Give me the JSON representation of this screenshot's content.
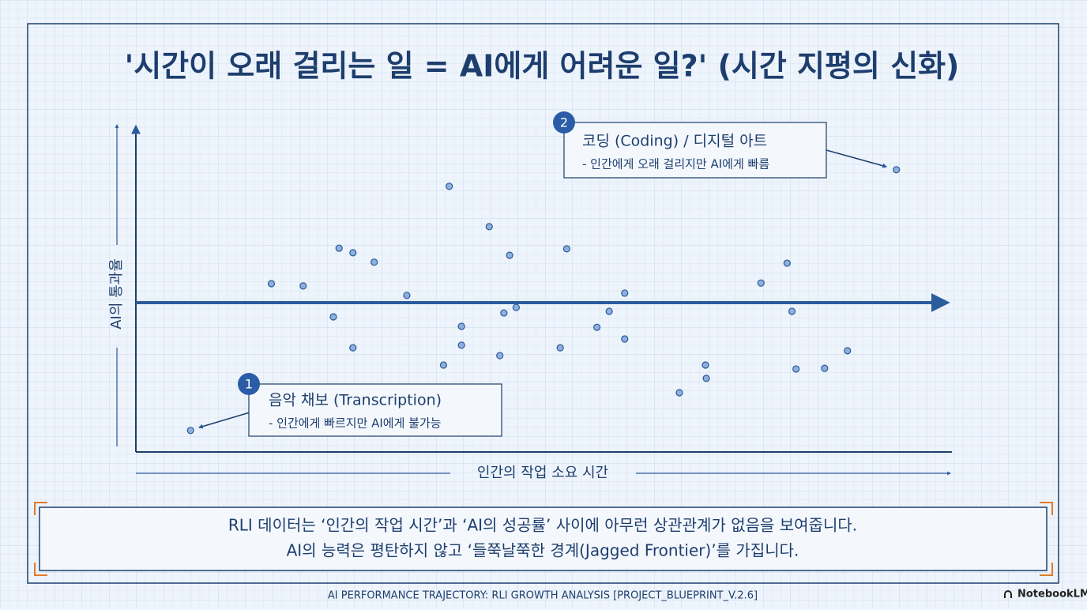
{
  "chart_data": {
    "type": "scatter",
    "title": "'시간이 오래 걸리는 일 = AI에게 어려운 일?' (시간 지평의 신화)",
    "x_label": "인간의 작업 소요 시간",
    "y_label": "AI의 통과율",
    "xlim": [
      0,
      100
    ],
    "ylim": [
      0,
      100
    ],
    "color": "#8fb0dc",
    "series": [
      {
        "x": [
          6.7,
          16.6,
          20.5,
          24.9,
          26.6,
          29.2,
          24.2,
          26.6,
          33.2,
          38.4,
          39.9,
          39.9,
          37.7,
          43.3,
          45.8,
          45.1,
          46.6,
          44.6,
          52.8,
          52.0,
          56.5,
          58.0,
          59.9,
          59.9,
          66.6,
          69.8,
          69.9,
          76.6,
          79.8,
          80.4,
          80.9,
          84.4,
          87.2,
          93.2
        ],
        "values": [
          6.6,
          51.7,
          51.0,
          62.6,
          61.2,
          58.3,
          41.5,
          32.0,
          48.1,
          81.6,
          38.6,
          32.8,
          26.7,
          69.2,
          60.4,
          42.7,
          44.4,
          29.6,
          62.4,
          32.0,
          38.3,
          43.2,
          48.8,
          34.7,
          18.2,
          26.7,
          22.6,
          51.9,
          58.0,
          43.2,
          25.5,
          25.7,
          31.1,
          86.7
        ]
      }
    ],
    "annotations": [
      {
        "number": "1",
        "title": "음악 채보 (Transcription)",
        "text": "- 인간에게 빠르지만 AI에게 불가능"
      },
      {
        "number": "2",
        "title": "코딩 (Coding) / 디지털 아트",
        "text": "- 인간에게 오래 걸리지만 AI에게 빠름"
      }
    ]
  },
  "caption": [
    "RLI 데이터는 ‘인간의 작업 시간’과 ‘AI의 성공률’ 사이에 아무런 상관관계가 없음을 보여줍니다.",
    "AI의 능력은 평탄하지 않고 ‘들쭉날쭉한 경계(Jagged Frontier)’를 가집니다."
  ],
  "footer": "AI PERFORMANCE TRAJECTORY: RLI GROWTH ANALYSIS [PROJECT_BLUEPRINT_V.2.6]",
  "brand": "NotebookLM"
}
